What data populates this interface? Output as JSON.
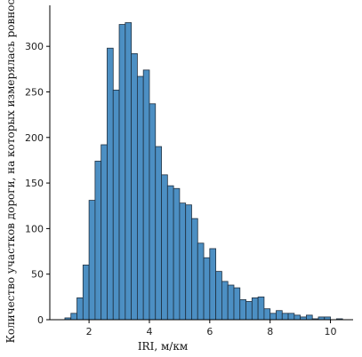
{
  "chart_data": {
    "type": "bar",
    "subtype": "histogram",
    "xlabel": "IRI, м/км",
    "ylabel": "Количество участков дороги, на которых измерялась ровность",
    "xlim": [
      0.7,
      10.75
    ],
    "ylim": [
      0,
      345
    ],
    "x_ticks": [
      2,
      4,
      6,
      8,
      10
    ],
    "y_ticks": [
      0,
      50,
      100,
      150,
      200,
      250,
      300
    ],
    "grid": false,
    "bar_color": "#4c8fc3",
    "edge_color": "#1f2f3f",
    "bin_width": 0.2,
    "bins_start": [
      1.2,
      1.4,
      1.6,
      1.8,
      2.0,
      2.2,
      2.4,
      2.6,
      2.8,
      3.0,
      3.2,
      3.4,
      3.6,
      3.8,
      4.0,
      4.2,
      4.4,
      4.6,
      4.8,
      5.0,
      5.2,
      5.4,
      5.6,
      5.8,
      6.0,
      6.2,
      6.4,
      6.6,
      6.8,
      7.0,
      7.2,
      7.4,
      7.6,
      7.8,
      8.0,
      8.2,
      8.4,
      8.6,
      8.8,
      9.0,
      9.2,
      9.4,
      9.6,
      9.8,
      10.0,
      10.2
    ],
    "values": [
      2,
      7,
      24,
      60,
      131,
      174,
      192,
      298,
      252,
      324,
      326,
      292,
      267,
      274,
      237,
      190,
      159,
      147,
      144,
      128,
      126,
      111,
      84,
      68,
      78,
      53,
      42,
      38,
      35,
      22,
      20,
      24,
      25,
      12,
      7,
      10,
      7,
      7,
      5,
      3,
      5,
      1,
      3,
      3,
      0,
      1
    ]
  }
}
